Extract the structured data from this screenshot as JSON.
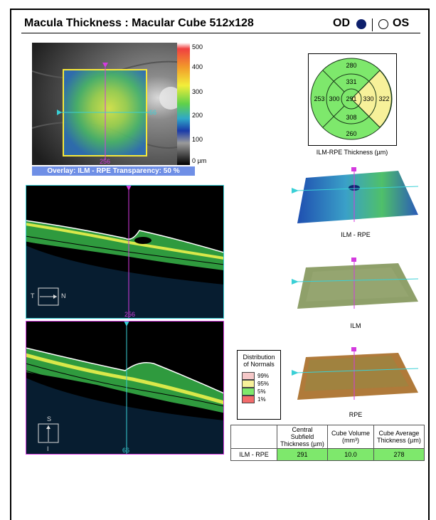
{
  "header": {
    "title": "Macula Thickness : Macular Cube 512x128",
    "od_label": "OD",
    "os_label": "OS",
    "od_selected": true
  },
  "fundus": {
    "overlay_text": "Overlay: ILM - RPE  Transparency: 50 %",
    "marker_right": "66",
    "marker_bottom": "256",
    "scale_labels": [
      "500",
      "400",
      "300",
      "200",
      "100",
      "0 µm"
    ]
  },
  "etdrs": {
    "caption": "ILM-RPE Thickness (µm)",
    "outer_top": "280",
    "outer_left": "253",
    "outer_right": "322",
    "outer_bottom": "260",
    "inner_top": "331",
    "inner_left": "300",
    "inner_right": "330",
    "inner_bottom": "308",
    "center": "291",
    "colors": {
      "normal": "#7ee86c",
      "yellow": "#f7f19a",
      "stroke": "#1a3a1a"
    }
  },
  "bscan_h": {
    "orientation_left": "T",
    "orientation_right": "N",
    "slice": "256"
  },
  "bscan_v": {
    "orientation_top": "S",
    "orientation_bottom": "I",
    "slice": "66"
  },
  "surfaces": {
    "ilm_rpe": "ILM - RPE",
    "ilm": "ILM",
    "rpe": "RPE"
  },
  "legend": {
    "title_line1": "Distribution",
    "title_line2": "of Normals",
    "levels": [
      "99%",
      "95%",
      "5%",
      "1%"
    ],
    "colors": [
      "#f5c8c8",
      "#f7f19a",
      "#7ee86c",
      "#f26b6b"
    ]
  },
  "summary": {
    "headers": [
      "",
      "Central Subfield Thickness (µm)",
      "Cube Volume (mm³)",
      "Cube Average Thickness (µm)"
    ],
    "row_label": "ILM - RPE",
    "values": [
      "291",
      "10.0",
      "278"
    ]
  }
}
